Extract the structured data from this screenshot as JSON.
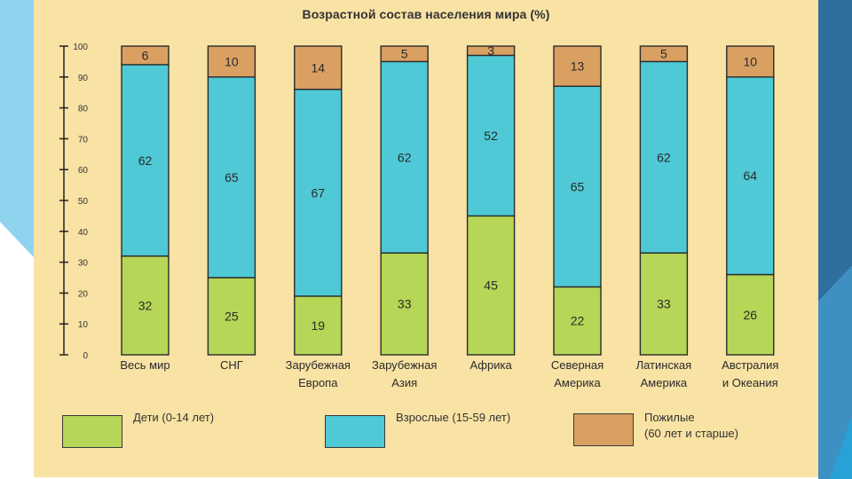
{
  "chart_data": {
    "type": "bar",
    "stacked": true,
    "title": "Возрастной состав населения мира (%)",
    "ylim": [
      0,
      100
    ],
    "yticks": [
      0,
      10,
      20,
      30,
      40,
      50,
      60,
      70,
      80,
      90,
      100
    ],
    "grid": false,
    "legend_position": "bottom",
    "categories": [
      [
        "Весь мир"
      ],
      [
        "СНГ"
      ],
      [
        "Зарубежная",
        "Европа"
      ],
      [
        "Зарубежная",
        "Азия"
      ],
      [
        "Африка"
      ],
      [
        "Северная",
        "Америка"
      ],
      [
        "Латинская",
        "Америка"
      ],
      [
        "Австралия",
        "и Океания"
      ]
    ],
    "series": [
      {
        "name": "Дети (0-14 лет)",
        "color": "#b5d656",
        "values": [
          32,
          25,
          19,
          33,
          45,
          22,
          33,
          26
        ]
      },
      {
        "name": "Взрослые (15-59 лет)",
        "color": "#4fc9d5",
        "values": [
          62,
          65,
          67,
          62,
          52,
          65,
          62,
          64
        ]
      },
      {
        "name": "Пожилые\n(60 лет и старше)",
        "color": "#d9a062",
        "values": [
          6,
          10,
          14,
          5,
          3,
          13,
          5,
          10
        ]
      }
    ]
  }
}
